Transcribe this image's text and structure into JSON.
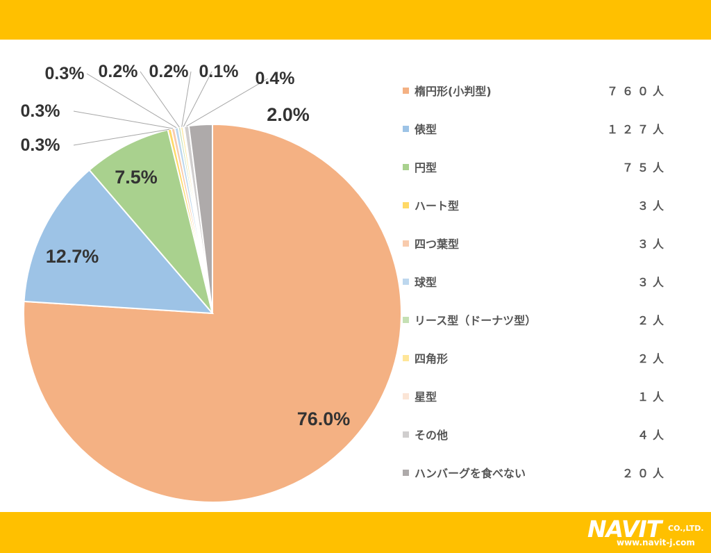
{
  "chart_data": {
    "type": "pie",
    "title": "",
    "start_angle_deg": 0,
    "direction": "clockwise",
    "legend_position": "right",
    "categories": [
      "楕円形(小判型)",
      "俵型",
      "円型",
      "ハート型",
      "四つ葉型",
      "球型",
      "リース型（ドーナツ型）",
      "四角形",
      "星型",
      "その他",
      "ハンバーグを食べない"
    ],
    "counts": [
      "７６０人",
      "１２７人",
      "７５人",
      "３人",
      "３人",
      "３人",
      "２人",
      "２人",
      "１人",
      "４人",
      "２０人"
    ],
    "values": [
      760,
      127,
      75,
      3,
      3,
      3,
      2,
      2,
      1,
      4,
      20
    ],
    "percentages": [
      76.0,
      12.7,
      7.5,
      0.3,
      0.3,
      0.3,
      0.2,
      0.2,
      0.1,
      0.4,
      2.0
    ],
    "labels": [
      "76.0%",
      "12.7%",
      "7.5%",
      "0.3%",
      "0.3%",
      "0.3%",
      "0.2%",
      "0.2%",
      "0.1%",
      "0.4%",
      "2.0%"
    ],
    "colors": [
      "#F4B183",
      "#9DC3E6",
      "#A9D18E",
      "#FFD966",
      "#F8CBAD",
      "#BDD7EE",
      "#C5E0B4",
      "#FFE699",
      "#FBE5D6",
      "#D0CECE",
      "#AEAAAA"
    ]
  },
  "footer": {
    "logo_main": "NAVIT",
    "logo_suffix": "CO.,LTD.",
    "logo_url": "www.navit-j.com"
  }
}
